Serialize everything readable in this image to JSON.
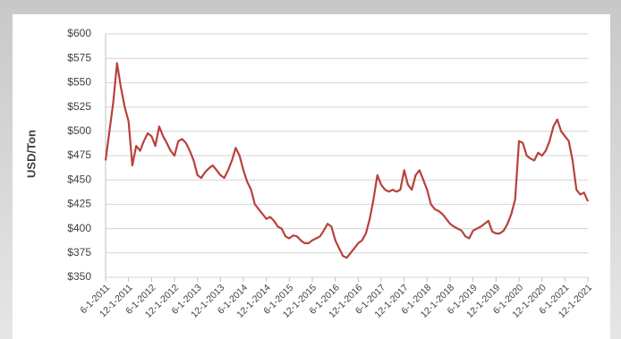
{
  "chart_data": {
    "type": "line",
    "y_label": "USD/Ton",
    "color": "#b8413d",
    "grid": true,
    "x": [
      "6-1-2011",
      "7-1-2011",
      "8-1-2011",
      "9-1-2011",
      "10-1-2011",
      "11-1-2011",
      "12-1-2011",
      "1-1-2012",
      "2-1-2012",
      "3-1-2012",
      "4-1-2012",
      "5-1-2012",
      "6-1-2012",
      "7-1-2012",
      "8-1-2012",
      "9-1-2012",
      "10-1-2012",
      "11-1-2012",
      "12-1-2012",
      "1-1-2013",
      "2-1-2013",
      "3-1-2013",
      "4-1-2013",
      "5-1-2013",
      "6-1-2013",
      "7-1-2013",
      "8-1-2013",
      "9-1-2013",
      "10-1-2013",
      "11-1-2013",
      "12-1-2013",
      "1-1-2014",
      "2-1-2014",
      "3-1-2014",
      "4-1-2014",
      "5-1-2014",
      "6-1-2014",
      "7-1-2014",
      "8-1-2014",
      "9-1-2014",
      "10-1-2014",
      "11-1-2014",
      "12-1-2014",
      "1-1-2015",
      "2-1-2015",
      "3-1-2015",
      "4-1-2015",
      "5-1-2015",
      "6-1-2015",
      "7-1-2015",
      "8-1-2015",
      "9-1-2015",
      "10-1-2015",
      "11-1-2015",
      "12-1-2015",
      "1-1-2016",
      "2-1-2016",
      "3-1-2016",
      "4-1-2016",
      "5-1-2016",
      "6-1-2016",
      "7-1-2016",
      "8-1-2016",
      "9-1-2016",
      "10-1-2016",
      "11-1-2016",
      "12-1-2016",
      "1-1-2017",
      "2-1-2017",
      "3-1-2017",
      "4-1-2017",
      "5-1-2017",
      "6-1-2017",
      "7-1-2017",
      "8-1-2017",
      "9-1-2017",
      "10-1-2017",
      "11-1-2017",
      "12-1-2017",
      "1-1-2018",
      "2-1-2018",
      "3-1-2018",
      "4-1-2018",
      "5-1-2018",
      "6-1-2018",
      "7-1-2018",
      "8-1-2018",
      "9-1-2018",
      "10-1-2018",
      "11-1-2018",
      "12-1-2018",
      "1-1-2019",
      "2-1-2019",
      "3-1-2019",
      "4-1-2019",
      "5-1-2019",
      "6-1-2019",
      "7-1-2019",
      "8-1-2019",
      "9-1-2019",
      "10-1-2019",
      "11-1-2019",
      "12-1-2019",
      "1-1-2020",
      "2-1-2020",
      "3-1-2020",
      "4-1-2020",
      "5-1-2020",
      "6-1-2020",
      "7-1-2020",
      "8-1-2020",
      "9-1-2020",
      "10-1-2020",
      "11-1-2020",
      "12-1-2020",
      "1-1-2021",
      "2-1-2021",
      "3-1-2021",
      "4-1-2021",
      "5-1-2021",
      "6-1-2021",
      "7-1-2021",
      "8-1-2021",
      "9-1-2021",
      "10-1-2021",
      "11-1-2021",
      "12-1-2021"
    ],
    "values": [
      470,
      500,
      530,
      570,
      545,
      525,
      510,
      465,
      485,
      480,
      490,
      498,
      495,
      485,
      505,
      495,
      488,
      480,
      475,
      490,
      492,
      488,
      480,
      470,
      455,
      452,
      458,
      462,
      465,
      460,
      455,
      452,
      460,
      470,
      483,
      475,
      460,
      448,
      440,
      425,
      420,
      415,
      410,
      412,
      408,
      402,
      400,
      392,
      390,
      393,
      392,
      388,
      385,
      385,
      388,
      390,
      392,
      398,
      405,
      402,
      388,
      380,
      372,
      370,
      375,
      380,
      385,
      388,
      395,
      410,
      430,
      455,
      445,
      440,
      438,
      440,
      438,
      440,
      460,
      445,
      440,
      455,
      460,
      450,
      440,
      425,
      420,
      418,
      415,
      410,
      405,
      402,
      400,
      398,
      392,
      390,
      398,
      400,
      402,
      405,
      408,
      397,
      395,
      395,
      398,
      405,
      415,
      430,
      490,
      488,
      475,
      472,
      470,
      478,
      475,
      480,
      490,
      505,
      512,
      500,
      495,
      490,
      470,
      440,
      435,
      437,
      428
    ],
    "xlim": [
      "6-1-2011",
      "12-1-2021"
    ],
    "xticks": [
      "6-1-2011",
      "12-1-2011",
      "6-1-2012",
      "12-1-2012",
      "6-1-2013",
      "12-1-2013",
      "6-1-2014",
      "12-1-2014",
      "6-1-2015",
      "12-1-2015",
      "6-1-2016",
      "12-1-2016",
      "6-1-2017",
      "12-1-2017",
      "6-1-2018",
      "12-1-2018",
      "6-1-2019",
      "12-1-2019",
      "6-1-2020",
      "12-1-2020",
      "6-1-2021",
      "12-1-2021"
    ],
    "ylim": [
      350,
      600
    ],
    "yticks": [
      {
        "value": 350,
        "label": "$350"
      },
      {
        "value": 375,
        "label": "$375"
      },
      {
        "value": 400,
        "label": "$400"
      },
      {
        "value": 425,
        "label": "$425"
      },
      {
        "value": 450,
        "label": "$450"
      },
      {
        "value": 475,
        "label": "$475"
      },
      {
        "value": 500,
        "label": "$500"
      },
      {
        "value": 525,
        "label": "$525"
      },
      {
        "value": 550,
        "label": "$550"
      },
      {
        "value": 575,
        "label": "$575"
      },
      {
        "value": 600,
        "label": "$600"
      }
    ]
  }
}
